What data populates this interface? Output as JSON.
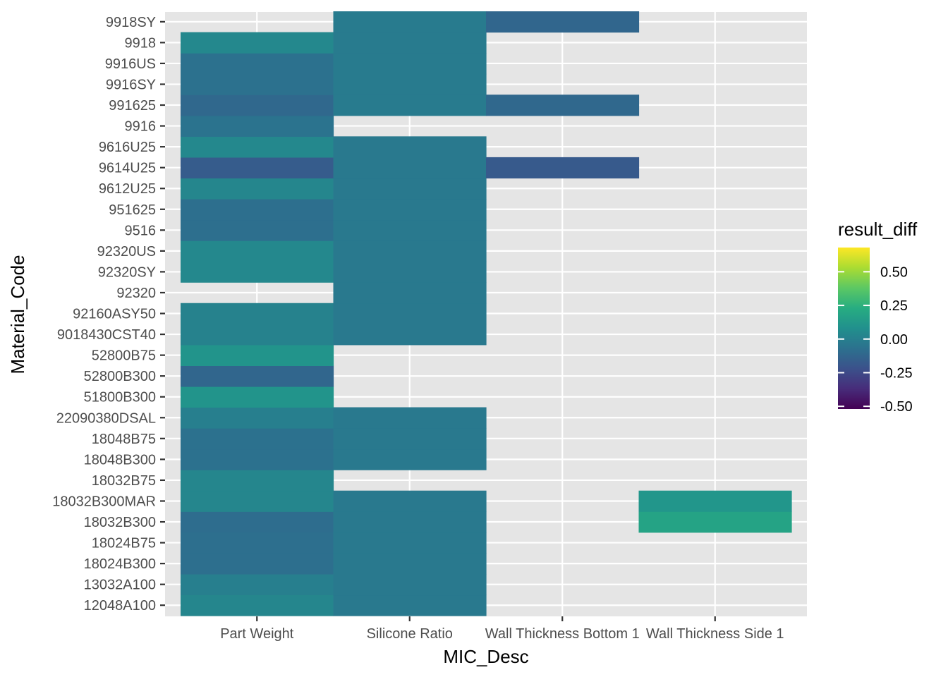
{
  "chart_data": {
    "type": "heatmap",
    "xlabel": "MIC_Desc",
    "ylabel": "Material_Code",
    "x_categories": [
      "Part Weight",
      "Silicone Ratio",
      "Wall Thickness Bottom 1",
      "Wall Thickness Side 1"
    ],
    "y_categories": [
      "12048A100",
      "13032A100",
      "18024B300",
      "18024B75",
      "18032B300",
      "18032B300MAR",
      "18032B75",
      "18048B300",
      "18048B75",
      "22090380DSAL",
      "51800B300",
      "52800B300",
      "52800B75",
      "9018430CST40",
      "92160ASY50",
      "92320",
      "92320SY",
      "92320US",
      "9516",
      "951625",
      "9612U25",
      "9614U25",
      "9616U25",
      "9916",
      "991625",
      "9916SY",
      "9916US",
      "9918",
      "9918SY"
    ],
    "cells": [
      {
        "x": "Part Weight",
        "y": "12048A100",
        "value": 0.03
      },
      {
        "x": "Part Weight",
        "y": "13032A100",
        "value": 0.0
      },
      {
        "x": "Part Weight",
        "y": "18024B300",
        "value": -0.08
      },
      {
        "x": "Part Weight",
        "y": "18024B75",
        "value": -0.08
      },
      {
        "x": "Part Weight",
        "y": "18032B300",
        "value": -0.09
      },
      {
        "x": "Part Weight",
        "y": "18032B300MAR",
        "value": 0.03
      },
      {
        "x": "Part Weight",
        "y": "18032B75",
        "value": 0.03
      },
      {
        "x": "Part Weight",
        "y": "18048B300",
        "value": -0.07
      },
      {
        "x": "Part Weight",
        "y": "18048B75",
        "value": -0.07
      },
      {
        "x": "Part Weight",
        "y": "22090380DSAL",
        "value": 0.0
      },
      {
        "x": "Part Weight",
        "y": "51800B300",
        "value": 0.1
      },
      {
        "x": "Part Weight",
        "y": "52800B300",
        "value": -0.12
      },
      {
        "x": "Part Weight",
        "y": "52800B75",
        "value": 0.1
      },
      {
        "x": "Part Weight",
        "y": "9018430CST40",
        "value": 0.01
      },
      {
        "x": "Part Weight",
        "y": "92160ASY50",
        "value": 0.01
      },
      {
        "x": "Part Weight",
        "y": "92320SY",
        "value": 0.04
      },
      {
        "x": "Part Weight",
        "y": "92320US",
        "value": 0.04
      },
      {
        "x": "Part Weight",
        "y": "9516",
        "value": -0.08
      },
      {
        "x": "Part Weight",
        "y": "951625",
        "value": -0.08
      },
      {
        "x": "Part Weight",
        "y": "9612U25",
        "value": 0.03
      },
      {
        "x": "Part Weight",
        "y": "9614U25",
        "value": -0.17
      },
      {
        "x": "Part Weight",
        "y": "9616U25",
        "value": 0.04
      },
      {
        "x": "Part Weight",
        "y": "9916",
        "value": -0.06
      },
      {
        "x": "Part Weight",
        "y": "991625",
        "value": -0.11
      },
      {
        "x": "Part Weight",
        "y": "9916SY",
        "value": -0.07
      },
      {
        "x": "Part Weight",
        "y": "9916US",
        "value": -0.07
      },
      {
        "x": "Part Weight",
        "y": "9918",
        "value": 0.04
      },
      {
        "x": "Silicone Ratio",
        "y": "12048A100",
        "value": -0.03
      },
      {
        "x": "Silicone Ratio",
        "y": "13032A100",
        "value": -0.03
      },
      {
        "x": "Silicone Ratio",
        "y": "18024B300",
        "value": -0.03
      },
      {
        "x": "Silicone Ratio",
        "y": "18024B75",
        "value": -0.03
      },
      {
        "x": "Silicone Ratio",
        "y": "18032B300",
        "value": -0.03
      },
      {
        "x": "Silicone Ratio",
        "y": "18032B300MAR",
        "value": -0.03
      },
      {
        "x": "Silicone Ratio",
        "y": "18048B300",
        "value": -0.03
      },
      {
        "x": "Silicone Ratio",
        "y": "18048B75",
        "value": -0.03
      },
      {
        "x": "Silicone Ratio",
        "y": "22090380DSAL",
        "value": -0.03
      },
      {
        "x": "Silicone Ratio",
        "y": "9018430CST40",
        "value": -0.03
      },
      {
        "x": "Silicone Ratio",
        "y": "92160ASY50",
        "value": -0.03
      },
      {
        "x": "Silicone Ratio",
        "y": "92320",
        "value": -0.03
      },
      {
        "x": "Silicone Ratio",
        "y": "92320SY",
        "value": -0.03
      },
      {
        "x": "Silicone Ratio",
        "y": "92320US",
        "value": -0.03
      },
      {
        "x": "Silicone Ratio",
        "y": "9516",
        "value": -0.03
      },
      {
        "x": "Silicone Ratio",
        "y": "951625",
        "value": -0.03
      },
      {
        "x": "Silicone Ratio",
        "y": "9612U25",
        "value": -0.03
      },
      {
        "x": "Silicone Ratio",
        "y": "9614U25",
        "value": -0.03
      },
      {
        "x": "Silicone Ratio",
        "y": "9616U25",
        "value": -0.03
      },
      {
        "x": "Silicone Ratio",
        "y": "991625",
        "value": -0.02
      },
      {
        "x": "Silicone Ratio",
        "y": "9916SY",
        "value": -0.02
      },
      {
        "x": "Silicone Ratio",
        "y": "9916US",
        "value": -0.02
      },
      {
        "x": "Silicone Ratio",
        "y": "9918",
        "value": -0.02
      },
      {
        "x": "Silicone Ratio",
        "y": "9918SY",
        "value": -0.02
      },
      {
        "x": "Wall Thickness Bottom 1",
        "y": "9614U25",
        "value": -0.18
      },
      {
        "x": "Wall Thickness Bottom 1",
        "y": "991625",
        "value": -0.11
      },
      {
        "x": "Wall Thickness Bottom 1",
        "y": "9918SY",
        "value": -0.12
      },
      {
        "x": "Wall Thickness Side 1",
        "y": "18032B300",
        "value": 0.18
      },
      {
        "x": "Wall Thickness Side 1",
        "y": "18032B300MAR",
        "value": 0.11
      }
    ],
    "legend": {
      "title": "result_diff",
      "breaks": [
        0.5,
        0.25,
        0.0,
        -0.25,
        -0.5
      ],
      "break_labels": [
        "0.50",
        "0.25",
        "0.00",
        "-0.25",
        "-0.50"
      ],
      "limits": [
        -0.52,
        0.68
      ],
      "palette": "viridis",
      "position": "right"
    },
    "panel_background": "#e5e5e5",
    "grid": true
  }
}
